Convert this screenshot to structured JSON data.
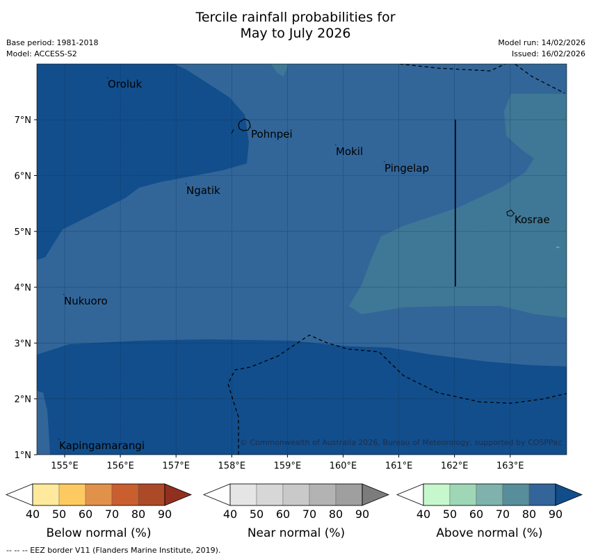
{
  "title": {
    "line1": "Tercile rainfall probabilities for",
    "line2": "May to July 2026"
  },
  "meta": {
    "base_period": "Base period: 1981-2018",
    "model": "Model: ACCESS-S2",
    "model_run": "Model run: 14/02/2026",
    "issued": "Issued: 16/02/2026"
  },
  "map": {
    "lat_ticks": [
      "1°N",
      "2°N",
      "3°N",
      "4°N",
      "5°N",
      "6°N",
      "7°N"
    ],
    "lon_ticks": [
      "155°E",
      "156°E",
      "157°E",
      "158°E",
      "159°E",
      "160°E",
      "161°E",
      "162°E",
      "163°E"
    ],
    "places": [
      {
        "name": "Oroluk"
      },
      {
        "name": "Pohnpei"
      },
      {
        "name": "Mokil"
      },
      {
        "name": "Pingelap"
      },
      {
        "name": "Ngatik"
      },
      {
        "name": "Kosrae"
      },
      {
        "name": "Nukuoro"
      },
      {
        "name": "Kapingamarangi"
      }
    ],
    "copyright": "© Commonwealth of Australia 2026, Bureau of Meteorology, supported by COSPPac",
    "colors": {
      "above_80": "#124e8c",
      "above_70": "#326699",
      "above_60": "#3f7896"
    }
  },
  "legends": [
    {
      "title": "Below normal (%)",
      "ticks": [
        "40",
        "50",
        "60",
        "70",
        "80",
        "90"
      ],
      "colors": [
        "#ffffff",
        "#ffe99d",
        "#fdca62",
        "#e0924b",
        "#c95f2f",
        "#ac4a28",
        "#92301f"
      ]
    },
    {
      "title": "Near normal (%)",
      "ticks": [
        "40",
        "50",
        "60",
        "70",
        "80",
        "90"
      ],
      "colors": [
        "#ffffff",
        "#e5e5e5",
        "#d7d7d7",
        "#c9c9c9",
        "#b3b3b3",
        "#9f9f9f",
        "#7c7c7c"
      ]
    },
    {
      "title": "Above normal (%)",
      "ticks": [
        "40",
        "50",
        "60",
        "70",
        "80",
        "90"
      ],
      "colors": [
        "#ffffff",
        "#c7f7cc",
        "#9fd6b6",
        "#7fb2ac",
        "#588e9c",
        "#33659a",
        "#124d8b"
      ]
    }
  ],
  "footer": "--  --  -- EEZ border V11 (Flanders Marine Institute, 2019)."
}
